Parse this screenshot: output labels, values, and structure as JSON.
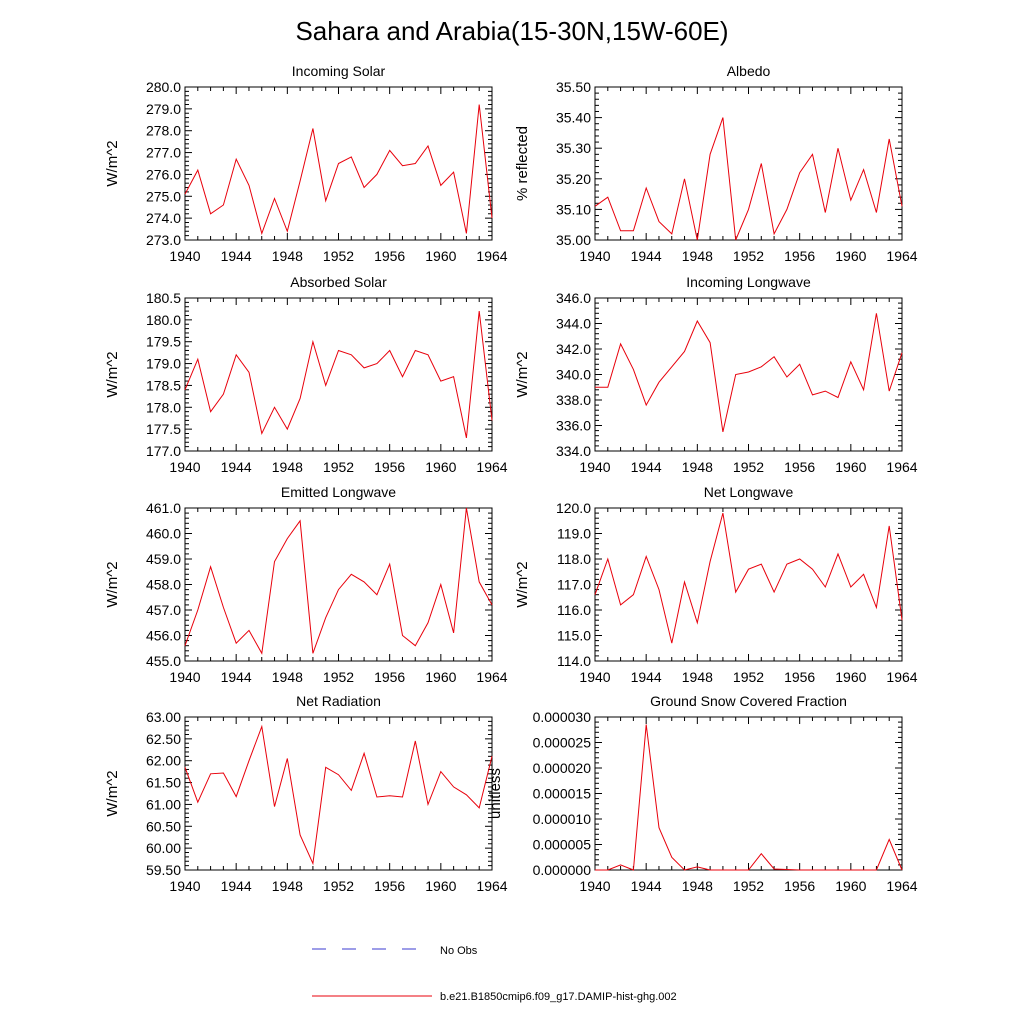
{
  "figure": {
    "title": "Sahara and Arabia(15-30N,15W-60E)",
    "line_color": "#e8000b",
    "obs_color": "#3b3bd0"
  },
  "legend": {
    "items": [
      {
        "label": "No Obs",
        "style": "dashed",
        "color": "#3b3bd0"
      },
      {
        "label": "b.e21.B1850cmip6.f09_g17.DAMIP-hist-ghg.002",
        "style": "solid",
        "color": "#e8000b"
      }
    ]
  },
  "chart_data": [
    {
      "type": "line",
      "title": "Incoming Solar",
      "ylabel": "W/m^2",
      "xlim": [
        1940,
        1964
      ],
      "ylim": [
        273.0,
        280.0
      ],
      "yticks": [
        273.0,
        274.0,
        275.0,
        276.0,
        277.0,
        278.0,
        279.0,
        280.0
      ],
      "ytick_labels": [
        "273.0",
        "274.0",
        "275.0",
        "276.0",
        "277.0",
        "278.0",
        "279.0",
        "280.0"
      ],
      "xticks": [
        1940,
        1944,
        1948,
        1952,
        1956,
        1960,
        1964
      ],
      "xtick_labels": [
        "1940",
        "1944",
        "1948",
        "1952",
        "1956",
        "1960",
        "1964"
      ],
      "x": [
        1940,
        1941,
        1942,
        1943,
        1944,
        1945,
        1946,
        1947,
        1948,
        1949,
        1950,
        1951,
        1952,
        1953,
        1954,
        1955,
        1956,
        1957,
        1958,
        1959,
        1960,
        1961,
        1962,
        1963,
        1964
      ],
      "values": [
        275.1,
        276.2,
        274.2,
        274.6,
        276.7,
        275.5,
        273.3,
        274.9,
        273.4,
        275.7,
        278.1,
        274.8,
        276.5,
        276.8,
        275.4,
        276.0,
        277.1,
        276.4,
        276.5,
        277.3,
        275.5,
        276.1,
        273.3,
        279.2,
        274.0
      ]
    },
    {
      "type": "line",
      "title": "Albedo",
      "ylabel": "% reflected",
      "xlim": [
        1940,
        1964
      ],
      "ylim": [
        35.0,
        35.5
      ],
      "yticks": [
        35.0,
        35.1,
        35.2,
        35.3,
        35.4,
        35.5
      ],
      "ytick_labels": [
        "35.00",
        "35.10",
        "35.20",
        "35.30",
        "35.40",
        "35.50"
      ],
      "xticks": [
        1940,
        1944,
        1948,
        1952,
        1956,
        1960,
        1964
      ],
      "xtick_labels": [
        "1940",
        "1944",
        "1948",
        "1952",
        "1956",
        "1960",
        "1964"
      ],
      "x": [
        1940,
        1941,
        1942,
        1943,
        1944,
        1945,
        1946,
        1947,
        1948,
        1949,
        1950,
        1951,
        1952,
        1953,
        1954,
        1955,
        1956,
        1957,
        1958,
        1959,
        1960,
        1961,
        1962,
        1963,
        1964
      ],
      "values": [
        35.11,
        35.14,
        35.03,
        35.03,
        35.17,
        35.06,
        35.02,
        35.2,
        35.0,
        35.28,
        35.4,
        35.0,
        35.1,
        35.25,
        35.02,
        35.1,
        35.22,
        35.28,
        35.09,
        35.3,
        35.13,
        35.23,
        35.09,
        35.33,
        35.11
      ]
    },
    {
      "type": "line",
      "title": "Absorbed Solar",
      "ylabel": "W/m^2",
      "xlim": [
        1940,
        1964
      ],
      "ylim": [
        177.0,
        180.5
      ],
      "yticks": [
        177.0,
        177.5,
        178.0,
        178.5,
        179.0,
        179.5,
        180.0,
        180.5
      ],
      "ytick_labels": [
        "177.0",
        "177.5",
        "178.0",
        "178.5",
        "179.0",
        "179.5",
        "180.0",
        "180.5"
      ],
      "xticks": [
        1940,
        1944,
        1948,
        1952,
        1956,
        1960,
        1964
      ],
      "xtick_labels": [
        "1940",
        "1944",
        "1948",
        "1952",
        "1956",
        "1960",
        "1964"
      ],
      "x": [
        1940,
        1941,
        1942,
        1943,
        1944,
        1945,
        1946,
        1947,
        1948,
        1949,
        1950,
        1951,
        1952,
        1953,
        1954,
        1955,
        1956,
        1957,
        1958,
        1959,
        1960,
        1961,
        1962,
        1963,
        1964
      ],
      "values": [
        178.4,
        179.1,
        177.9,
        178.3,
        179.2,
        178.8,
        177.4,
        178.0,
        177.5,
        178.2,
        179.5,
        178.5,
        179.3,
        179.2,
        178.9,
        179.0,
        179.3,
        178.7,
        179.3,
        179.2,
        178.6,
        178.7,
        177.3,
        180.2,
        177.7
      ]
    },
    {
      "type": "line",
      "title": "Incoming Longwave",
      "ylabel": "W/m^2",
      "xlim": [
        1940,
        1964
      ],
      "ylim": [
        334.0,
        346.0
      ],
      "yticks": [
        334.0,
        336.0,
        338.0,
        340.0,
        342.0,
        344.0,
        346.0
      ],
      "ytick_labels": [
        "334.0",
        "336.0",
        "338.0",
        "340.0",
        "342.0",
        "344.0",
        "346.0"
      ],
      "xticks": [
        1940,
        1944,
        1948,
        1952,
        1956,
        1960,
        1964
      ],
      "xtick_labels": [
        "1940",
        "1944",
        "1948",
        "1952",
        "1956",
        "1960",
        "1964"
      ],
      "x": [
        1940,
        1941,
        1942,
        1943,
        1944,
        1945,
        1946,
        1947,
        1948,
        1949,
        1950,
        1951,
        1952,
        1953,
        1954,
        1955,
        1956,
        1957,
        1958,
        1959,
        1960,
        1961,
        1962,
        1963,
        1964
      ],
      "values": [
        339.0,
        339.0,
        342.4,
        340.4,
        337.6,
        339.4,
        340.6,
        341.8,
        344.2,
        342.5,
        335.5,
        340.0,
        340.2,
        340.6,
        341.4,
        339.8,
        340.8,
        338.4,
        338.7,
        338.2,
        341.0,
        338.8,
        344.8,
        338.7,
        341.7
      ]
    },
    {
      "type": "line",
      "title": "Emitted Longwave",
      "ylabel": "W/m^2",
      "xlim": [
        1940,
        1964
      ],
      "ylim": [
        455.0,
        461.0
      ],
      "yticks": [
        455.0,
        456.0,
        457.0,
        458.0,
        459.0,
        460.0,
        461.0
      ],
      "ytick_labels": [
        "455.0",
        "456.0",
        "457.0",
        "458.0",
        "459.0",
        "460.0",
        "461.0"
      ],
      "xticks": [
        1940,
        1944,
        1948,
        1952,
        1956,
        1960,
        1964
      ],
      "xtick_labels": [
        "1940",
        "1944",
        "1948",
        "1952",
        "1956",
        "1960",
        "1964"
      ],
      "x": [
        1940,
        1941,
        1942,
        1943,
        1944,
        1945,
        1946,
        1947,
        1948,
        1949,
        1950,
        1951,
        1952,
        1953,
        1954,
        1955,
        1956,
        1957,
        1958,
        1959,
        1960,
        1961,
        1962,
        1963,
        1964
      ],
      "values": [
        455.6,
        457.0,
        458.7,
        457.1,
        455.7,
        456.2,
        455.3,
        458.9,
        459.8,
        460.5,
        455.3,
        456.7,
        457.8,
        458.4,
        458.1,
        457.6,
        458.8,
        456.0,
        455.6,
        456.5,
        458.0,
        456.1,
        461.0,
        458.1,
        457.2
      ]
    },
    {
      "type": "line",
      "title": "Net Longwave",
      "ylabel": "W/m^2",
      "xlim": [
        1940,
        1964
      ],
      "ylim": [
        114.0,
        120.0
      ],
      "yticks": [
        114.0,
        115.0,
        116.0,
        117.0,
        118.0,
        119.0,
        120.0
      ],
      "ytick_labels": [
        "114.0",
        "115.0",
        "116.0",
        "117.0",
        "118.0",
        "119.0",
        "120.0"
      ],
      "xticks": [
        1940,
        1944,
        1948,
        1952,
        1956,
        1960,
        1964
      ],
      "xtick_labels": [
        "1940",
        "1944",
        "1948",
        "1952",
        "1956",
        "1960",
        "1964"
      ],
      "x": [
        1940,
        1941,
        1942,
        1943,
        1944,
        1945,
        1946,
        1947,
        1948,
        1949,
        1950,
        1951,
        1952,
        1953,
        1954,
        1955,
        1956,
        1957,
        1958,
        1959,
        1960,
        1961,
        1962,
        1963,
        1964
      ],
      "values": [
        116.6,
        118.0,
        116.2,
        116.6,
        118.1,
        116.8,
        114.7,
        117.1,
        115.5,
        117.9,
        119.8,
        116.7,
        117.6,
        117.8,
        116.7,
        117.8,
        118.0,
        117.6,
        116.9,
        118.2,
        116.9,
        117.4,
        116.1,
        119.3,
        115.6
      ]
    },
    {
      "type": "line",
      "title": "Net Radiation",
      "ylabel": "W/m^2",
      "xlim": [
        1940,
        1964
      ],
      "ylim": [
        59.5,
        63.0
      ],
      "yticks": [
        59.5,
        60.0,
        60.5,
        61.0,
        61.5,
        62.0,
        62.5,
        63.0
      ],
      "ytick_labels": [
        "59.50",
        "60.00",
        "60.50",
        "61.00",
        "61.50",
        "62.00",
        "62.50",
        "63.00"
      ],
      "xticks": [
        1940,
        1944,
        1948,
        1952,
        1956,
        1960,
        1964
      ],
      "xtick_labels": [
        "1940",
        "1944",
        "1948",
        "1952",
        "1956",
        "1960",
        "1964"
      ],
      "x": [
        1940,
        1941,
        1942,
        1943,
        1944,
        1945,
        1946,
        1947,
        1948,
        1949,
        1950,
        1951,
        1952,
        1953,
        1954,
        1955,
        1956,
        1957,
        1958,
        1959,
        1960,
        1961,
        1962,
        1963,
        1964
      ],
      "values": [
        61.85,
        61.05,
        61.7,
        61.72,
        61.18,
        62.0,
        62.78,
        60.95,
        62.05,
        60.3,
        59.65,
        61.85,
        61.68,
        61.32,
        62.17,
        61.17,
        61.2,
        61.17,
        62.45,
        61.0,
        61.75,
        61.4,
        61.22,
        60.92,
        62.1
      ]
    },
    {
      "type": "line",
      "title": "Ground Snow Covered Fraction",
      "ylabel": "unitless",
      "xlim": [
        1940,
        1964
      ],
      "ylim": [
        0.0,
        3e-05
      ],
      "yticks": [
        0.0,
        5e-06,
        1e-05,
        1.5e-05,
        2e-05,
        2.5e-05,
        3e-05
      ],
      "ytick_labels": [
        "0.000000",
        "0.000005",
        "0.000010",
        "0.000015",
        "0.000020",
        "0.000025",
        "0.000030"
      ],
      "xticks": [
        1940,
        1944,
        1948,
        1952,
        1956,
        1960,
        1964
      ],
      "xtick_labels": [
        "1940",
        "1944",
        "1948",
        "1952",
        "1956",
        "1960",
        "1964"
      ],
      "x": [
        1940,
        1941,
        1942,
        1943,
        1944,
        1945,
        1946,
        1947,
        1948,
        1949,
        1950,
        1951,
        1952,
        1953,
        1954,
        1955,
        1956,
        1957,
        1958,
        1959,
        1960,
        1961,
        1962,
        1963,
        1964
      ],
      "values": [
        0.0,
        0.0,
        1e-06,
        0.0,
        2.85e-05,
        8.3e-06,
        2.5e-06,
        0.0,
        6e-07,
        0.0,
        0.0,
        0.0,
        0.0,
        3.2e-06,
        2e-07,
        1e-07,
        0.0,
        0.0,
        0.0,
        0.0,
        0.0,
        0.0,
        0.0,
        6e-06,
        0.0
      ]
    }
  ]
}
